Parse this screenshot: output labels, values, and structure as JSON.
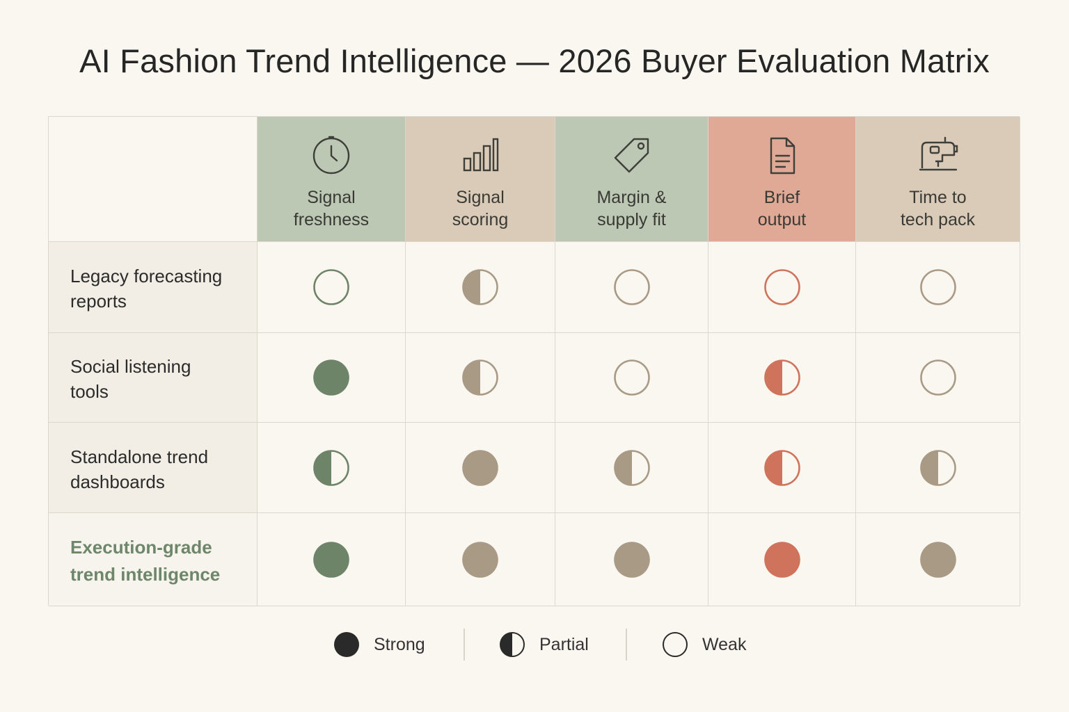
{
  "title": "AI Fashion Trend Intelligence — 2026 Buyer Evaluation Matrix",
  "columns": [
    {
      "label": "Signal\nfreshness",
      "icon": "clock-icon",
      "bg": "#bcc8b4",
      "accent": "#6e8468"
    },
    {
      "label": "Signal\nscoring",
      "icon": "bar-chart-icon",
      "bg": "#dacbb9",
      "accent": "#a89a85"
    },
    {
      "label": "Margin &\nsupply fit",
      "icon": "price-tag-icon",
      "bg": "#bcc8b4",
      "accent": "#a89a85"
    },
    {
      "label": "Brief\noutput",
      "icon": "document-icon",
      "bg": "#e0a996",
      "accent": "#cf735c"
    },
    {
      "label": "Time to\ntech pack",
      "icon": "sewing-machine-icon",
      "bg": "#dacbb9",
      "accent": "#a89a85"
    }
  ],
  "rows": [
    {
      "label": "Legacy forecasting\nreports",
      "emphasis": false,
      "ratings": [
        "weak",
        "partial",
        "weak",
        "weak",
        "weak"
      ]
    },
    {
      "label": "Social listening\ntools",
      "emphasis": false,
      "ratings": [
        "strong",
        "partial",
        "weak",
        "partial",
        "weak"
      ]
    },
    {
      "label": "Standalone trend\ndashboards",
      "emphasis": false,
      "ratings": [
        "partial",
        "strong",
        "partial",
        "partial",
        "partial"
      ]
    },
    {
      "label": "Execution-grade\ntrend intelligence",
      "emphasis": true,
      "ratings": [
        "strong",
        "strong",
        "strong",
        "strong",
        "strong"
      ]
    }
  ],
  "legend": [
    {
      "label": "Strong",
      "rating": "strong"
    },
    {
      "label": "Partial",
      "rating": "partial"
    },
    {
      "label": "Weak",
      "rating": "weak"
    }
  ],
  "colors": {
    "background": "#faf7f1",
    "grid_line": "#dcd6cc",
    "legend_mark": "#2a2a2a",
    "emphasis_text": "#6e866a"
  }
}
